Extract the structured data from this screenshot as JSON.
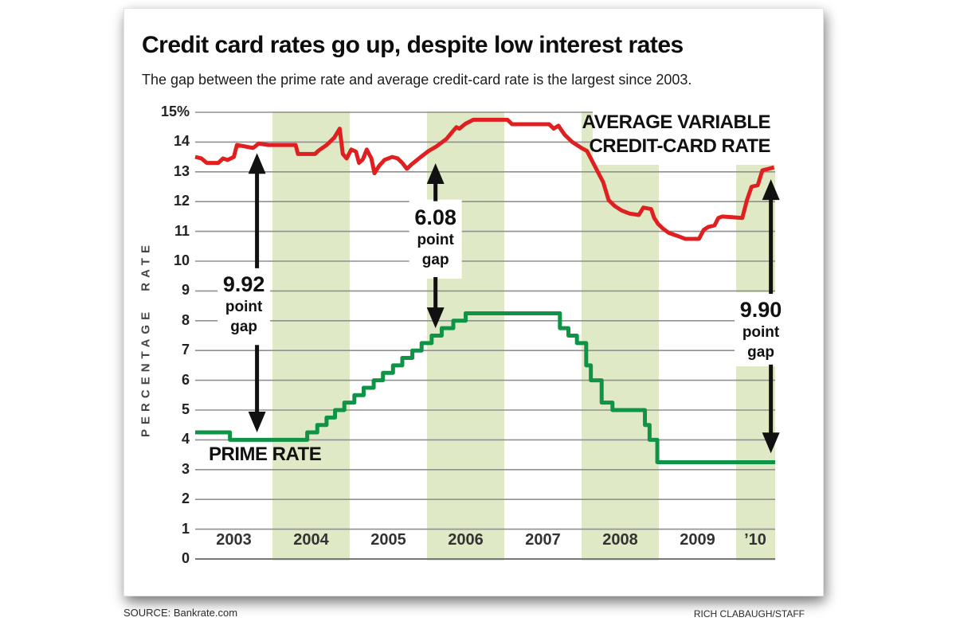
{
  "header": {
    "title": "Credit card rates go up, despite low interest rates",
    "subtitle": "The gap between the prime rate and average credit-card rate is the largest since 2003."
  },
  "footer": {
    "source": "SOURCE: Bankrate.com",
    "credit": "RICH CLABAUGH/STAFF"
  },
  "chart_data": {
    "type": "line",
    "title": "Credit card rates go up, despite low interest rates",
    "ylabel": "PERCENTAGE RATE",
    "y_range": [
      0,
      15
    ],
    "x_range": [
      2003,
      2010.5
    ],
    "grid": true,
    "y_ticks": [
      {
        "label": "15%",
        "value": 15
      },
      {
        "label": "14",
        "value": 14
      },
      {
        "label": "13",
        "value": 13
      },
      {
        "label": "12",
        "value": 12
      },
      {
        "label": "11",
        "value": 11
      },
      {
        "label": "10",
        "value": 10
      },
      {
        "label": "9",
        "value": 9
      },
      {
        "label": "8",
        "value": 8
      },
      {
        "label": "7",
        "value": 7
      },
      {
        "label": "6",
        "value": 6
      },
      {
        "label": "5",
        "value": 5
      },
      {
        "label": "4",
        "value": 4
      },
      {
        "label": "3",
        "value": 3
      },
      {
        "label": "2",
        "value": 2
      },
      {
        "label": "1",
        "value": 1
      },
      {
        "label": "0",
        "value": 0
      }
    ],
    "x_ticks": [
      {
        "label": "2003",
        "year": 2003
      },
      {
        "label": "2004",
        "year": 2004
      },
      {
        "label": "2005",
        "year": 2005
      },
      {
        "label": "2006",
        "year": 2006
      },
      {
        "label": "2007",
        "year": 2007
      },
      {
        "label": "2008",
        "year": 2008
      },
      {
        "label": "2009",
        "year": 2009
      },
      {
        "label": "’10",
        "year": 2010
      }
    ],
    "shaded_band_years": [
      2004,
      2006,
      2008,
      2010
    ],
    "series": [
      {
        "name": "Average variable credit-card rate",
        "label_lines": [
          "AVERAGE VARIABLE",
          "CREDIT-CARD RATE"
        ],
        "color": "#e02020",
        "mode": "linear",
        "points": [
          [
            2003.0,
            13.5
          ],
          [
            2003.08,
            13.45
          ],
          [
            2003.15,
            13.3
          ],
          [
            2003.3,
            13.3
          ],
          [
            2003.36,
            13.45
          ],
          [
            2003.42,
            13.4
          ],
          [
            2003.5,
            13.5
          ],
          [
            2003.54,
            13.9
          ],
          [
            2003.65,
            13.85
          ],
          [
            2003.75,
            13.8
          ],
          [
            2003.82,
            13.95
          ],
          [
            2003.95,
            13.9
          ],
          [
            2004.3,
            13.9
          ],
          [
            2004.33,
            13.6
          ],
          [
            2004.55,
            13.6
          ],
          [
            2004.6,
            13.72
          ],
          [
            2004.7,
            13.9
          ],
          [
            2004.8,
            14.15
          ],
          [
            2004.87,
            14.45
          ],
          [
            2004.91,
            13.6
          ],
          [
            2004.96,
            13.45
          ],
          [
            2005.02,
            13.75
          ],
          [
            2005.08,
            13.68
          ],
          [
            2005.12,
            13.3
          ],
          [
            2005.17,
            13.42
          ],
          [
            2005.22,
            13.75
          ],
          [
            2005.28,
            13.45
          ],
          [
            2005.32,
            12.95
          ],
          [
            2005.38,
            13.2
          ],
          [
            2005.45,
            13.4
          ],
          [
            2005.55,
            13.5
          ],
          [
            2005.62,
            13.45
          ],
          [
            2005.68,
            13.3
          ],
          [
            2005.74,
            13.1
          ],
          [
            2005.8,
            13.25
          ],
          [
            2005.92,
            13.5
          ],
          [
            2006.02,
            13.7
          ],
          [
            2006.12,
            13.85
          ],
          [
            2006.25,
            14.1
          ],
          [
            2006.33,
            14.35
          ],
          [
            2006.38,
            14.5
          ],
          [
            2006.42,
            14.45
          ],
          [
            2006.5,
            14.62
          ],
          [
            2006.6,
            14.75
          ],
          [
            2007.04,
            14.75
          ],
          [
            2007.1,
            14.6
          ],
          [
            2007.58,
            14.6
          ],
          [
            2007.64,
            14.45
          ],
          [
            2007.7,
            14.55
          ],
          [
            2007.78,
            14.25
          ],
          [
            2007.88,
            14.0
          ],
          [
            2008.0,
            13.8
          ],
          [
            2008.07,
            13.7
          ],
          [
            2008.28,
            12.65
          ],
          [
            2008.35,
            12.05
          ],
          [
            2008.43,
            11.85
          ],
          [
            2008.52,
            11.7
          ],
          [
            2008.62,
            11.6
          ],
          [
            2008.74,
            11.55
          ],
          [
            2008.8,
            11.8
          ],
          [
            2008.9,
            11.75
          ],
          [
            2008.94,
            11.45
          ],
          [
            2008.99,
            11.25
          ],
          [
            2009.05,
            11.1
          ],
          [
            2009.13,
            10.95
          ],
          [
            2009.24,
            10.85
          ],
          [
            2009.34,
            10.75
          ],
          [
            2009.52,
            10.75
          ],
          [
            2009.58,
            11.05
          ],
          [
            2009.64,
            11.15
          ],
          [
            2009.72,
            11.2
          ],
          [
            2009.77,
            11.45
          ],
          [
            2009.82,
            11.5
          ],
          [
            2010.08,
            11.45
          ],
          [
            2010.14,
            12.05
          ],
          [
            2010.2,
            12.5
          ],
          [
            2010.28,
            12.55
          ],
          [
            2010.34,
            13.05
          ],
          [
            2010.42,
            13.1
          ],
          [
            2010.49,
            13.15
          ]
        ]
      },
      {
        "name": "Prime rate",
        "label_lines": [
          "PRIME RATE"
        ],
        "color": "#0f9447",
        "mode": "step",
        "points": [
          [
            2003.0,
            4.25
          ],
          [
            2003.45,
            4.0
          ],
          [
            2004.45,
            4.25
          ],
          [
            2004.58,
            4.5
          ],
          [
            2004.7,
            4.75
          ],
          [
            2004.81,
            5.0
          ],
          [
            2004.93,
            5.25
          ],
          [
            2005.06,
            5.5
          ],
          [
            2005.18,
            5.75
          ],
          [
            2005.31,
            6.0
          ],
          [
            2005.43,
            6.25
          ],
          [
            2005.56,
            6.5
          ],
          [
            2005.68,
            6.75
          ],
          [
            2005.81,
            7.0
          ],
          [
            2005.93,
            7.25
          ],
          [
            2006.06,
            7.5
          ],
          [
            2006.19,
            7.75
          ],
          [
            2006.34,
            8.0
          ],
          [
            2006.5,
            8.25
          ],
          [
            2007.72,
            7.75
          ],
          [
            2007.83,
            7.5
          ],
          [
            2007.94,
            7.25
          ],
          [
            2008.06,
            6.5
          ],
          [
            2008.12,
            6.0
          ],
          [
            2008.26,
            5.25
          ],
          [
            2008.4,
            5.0
          ],
          [
            2008.82,
            4.5
          ],
          [
            2008.88,
            4.0
          ],
          [
            2008.98,
            3.25
          ],
          [
            2010.5,
            3.25
          ]
        ]
      }
    ],
    "annotations": [
      {
        "value": "9.92",
        "line2": "point",
        "line3": "gap",
        "x_year": 2003.8,
        "text_x_year": 2003.63,
        "tip_top": 13.63,
        "text_top": 9.55,
        "text_bottom": 7.4,
        "tip_bottom": 4.25
      },
      {
        "value": "6.08",
        "line2": "point",
        "line3": "gap",
        "x_year": 2006.11,
        "text_x_year": 2006.11,
        "tip_top": 13.29,
        "text_top": 11.8,
        "text_bottom": 9.68,
        "tip_bottom": 7.75
      },
      {
        "value": "9.90",
        "line2": "point",
        "line3": "gap",
        "x_year": 2010.45,
        "text_x_year": 2010.32,
        "tip_top": 12.75,
        "text_top": 8.69,
        "text_bottom": 6.74,
        "tip_bottom": 3.55
      }
    ],
    "colors": {
      "credit_card_line": "#e02020",
      "prime_line": "#0f9447",
      "year_band": "#dfe9c5",
      "gridline": "#909090",
      "annotation": "#111111"
    }
  }
}
